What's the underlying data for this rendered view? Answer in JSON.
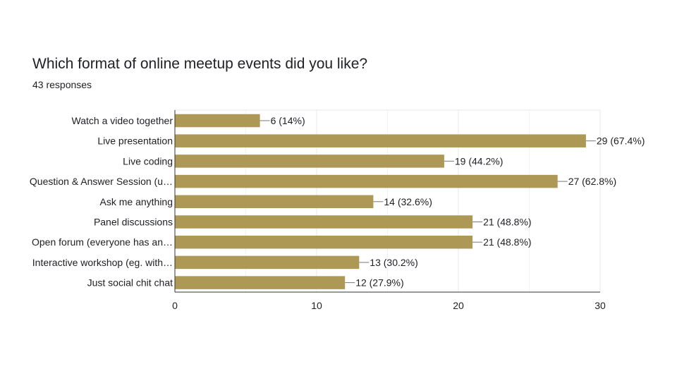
{
  "header": {
    "title": "Which format of online meetup events did you like?",
    "subtitle": "43 responses"
  },
  "colors": {
    "bar": "#ad9855",
    "grid": "#e8e8e8",
    "axis": "#333333",
    "text": "#202124"
  },
  "chart_data": {
    "type": "bar",
    "orientation": "horizontal",
    "title": "Which format of online meetup events did you like?",
    "subtitle": "43 responses",
    "categories": [
      "Watch a video together",
      "Live presentation",
      "Live coding",
      "Question & Answer Session (u…",
      "Ask me anything",
      "Panel discussions",
      "Open forum (everyone has an…",
      "Interactive workshop (eg. with…",
      "Just social chit chat"
    ],
    "values": [
      6,
      29,
      19,
      27,
      14,
      21,
      21,
      13,
      12
    ],
    "percents": [
      "14%",
      "67.4%",
      "44.2%",
      "62.8%",
      "32.6%",
      "48.8%",
      "48.8%",
      "30.2%",
      "27.9%"
    ],
    "data_labels": [
      "6 (14%)",
      "29 (67.4%)",
      "19 (44.2%)",
      "27 (62.8%)",
      "14 (32.6%)",
      "21 (48.8%)",
      "21 (48.8%)",
      "13 (30.2%)",
      "12 (27.9%)"
    ],
    "xticks": [
      0,
      10,
      20,
      30
    ],
    "xtick_labels": [
      "0",
      "10",
      "20",
      "30"
    ],
    "xlim": [
      0,
      30
    ],
    "grid": true,
    "legend": "none",
    "xlabel": "",
    "ylabel": ""
  }
}
